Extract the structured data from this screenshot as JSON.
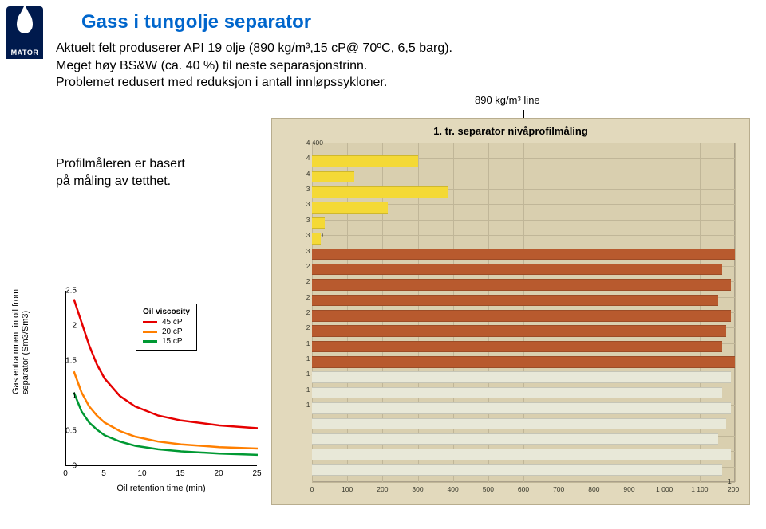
{
  "logo_text": "MATOR",
  "title": "Gass i tungolje separator",
  "paragraph_lines": [
    "Aktuelt felt produserer API 19 olje (890 kg/m³,15 cP@ 70ºC, 6,5 barg).",
    "Meget høy BS&W (ca. 40 %) til neste separasjonstrinn.",
    "Problemet redusert med reduksjon i antall innløpssykloner."
  ],
  "side_text_lines": [
    "Profilmåleren er basert",
    "på måling av tetthet."
  ],
  "density_label": "890 kg/m³ line",
  "title_color": "#0066cc",
  "left_chart": {
    "ylabel": "Gas entrainment in oil from\nseparator (Sm3/Sm3)",
    "xlabel": "Oil retention time (min)",
    "ylim": [
      0,
      2.5
    ],
    "xlim": [
      0,
      25
    ],
    "yticks": [
      0,
      0.5,
      1,
      1.5,
      2,
      2.5
    ],
    "xticks": [
      0,
      5,
      10,
      15,
      20,
      25
    ],
    "legend_title": "Oil viscosity",
    "series": [
      {
        "label": "45 cP",
        "color": "#e60000",
        "points": [
          [
            1,
            2.38
          ],
          [
            2,
            2.05
          ],
          [
            3,
            1.72
          ],
          [
            4,
            1.45
          ],
          [
            5,
            1.25
          ],
          [
            7,
            1.0
          ],
          [
            9,
            0.85
          ],
          [
            12,
            0.72
          ],
          [
            15,
            0.65
          ],
          [
            20,
            0.58
          ],
          [
            25,
            0.54
          ]
        ]
      },
      {
        "label": "20 cP",
        "color": "#ff7f00",
        "points": [
          [
            1,
            1.35
          ],
          [
            2,
            1.05
          ],
          [
            3,
            0.85
          ],
          [
            4,
            0.72
          ],
          [
            5,
            0.62
          ],
          [
            7,
            0.5
          ],
          [
            9,
            0.42
          ],
          [
            12,
            0.35
          ],
          [
            15,
            0.31
          ],
          [
            20,
            0.27
          ],
          [
            25,
            0.25
          ]
        ]
      },
      {
        "label": "15 cP",
        "color": "#009933",
        "points": [
          [
            1,
            1.05
          ],
          [
            2,
            0.78
          ],
          [
            3,
            0.62
          ],
          [
            4,
            0.52
          ],
          [
            5,
            0.44
          ],
          [
            7,
            0.35
          ],
          [
            9,
            0.29
          ],
          [
            12,
            0.24
          ],
          [
            15,
            0.21
          ],
          [
            20,
            0.18
          ],
          [
            25,
            0.16
          ]
        ]
      }
    ],
    "line_width": 2.5
  },
  "right_chart": {
    "title": "1. tr. separator nivåprofilmåling",
    "background": "#e2d9bc",
    "plot_bg": "#d9cfaf",
    "ylim": [
      0,
      4400
    ],
    "xlim": [
      0,
      1200
    ],
    "ytick_step": 200,
    "xtick_step": 100,
    "colors": {
      "foam": "#f4d936",
      "oil": "#b85a2e",
      "water": "#e8e8d8"
    },
    "bars": [
      {
        "y": 4400,
        "w": 0.0,
        "c": "foam"
      },
      {
        "y": 4200,
        "w": 0.25,
        "c": "foam"
      },
      {
        "y": 4000,
        "w": 0.1,
        "c": "foam"
      },
      {
        "y": 3800,
        "w": 0.32,
        "c": "foam"
      },
      {
        "y": 3600,
        "w": 0.18,
        "c": "foam"
      },
      {
        "y": 3400,
        "w": 0.03,
        "c": "foam"
      },
      {
        "y": 3200,
        "w": 0.02,
        "c": "foam"
      },
      {
        "y": 3000,
        "w": 1.0,
        "c": "oil"
      },
      {
        "y": 2800,
        "w": 0.97,
        "c": "oil"
      },
      {
        "y": 2600,
        "w": 0.99,
        "c": "oil"
      },
      {
        "y": 2400,
        "w": 0.96,
        "c": "oil"
      },
      {
        "y": 2200,
        "w": 0.99,
        "c": "oil"
      },
      {
        "y": 2000,
        "w": 0.98,
        "c": "oil"
      },
      {
        "y": 1800,
        "w": 0.97,
        "c": "oil"
      },
      {
        "y": 1600,
        "w": 1.0,
        "c": "oil"
      },
      {
        "y": 1400,
        "w": 0.99,
        "c": "water"
      },
      {
        "y": 1200,
        "w": 0.97,
        "c": "water"
      },
      {
        "y": 1000,
        "w": 0.99,
        "c": "water"
      },
      {
        "y": 800,
        "w": 0.98,
        "c": "water"
      },
      {
        "y": 600,
        "w": 0.96,
        "c": "water"
      },
      {
        "y": 400,
        "w": 0.99,
        "c": "water"
      },
      {
        "y": 200,
        "w": 0.97,
        "c": "water"
      }
    ]
  }
}
